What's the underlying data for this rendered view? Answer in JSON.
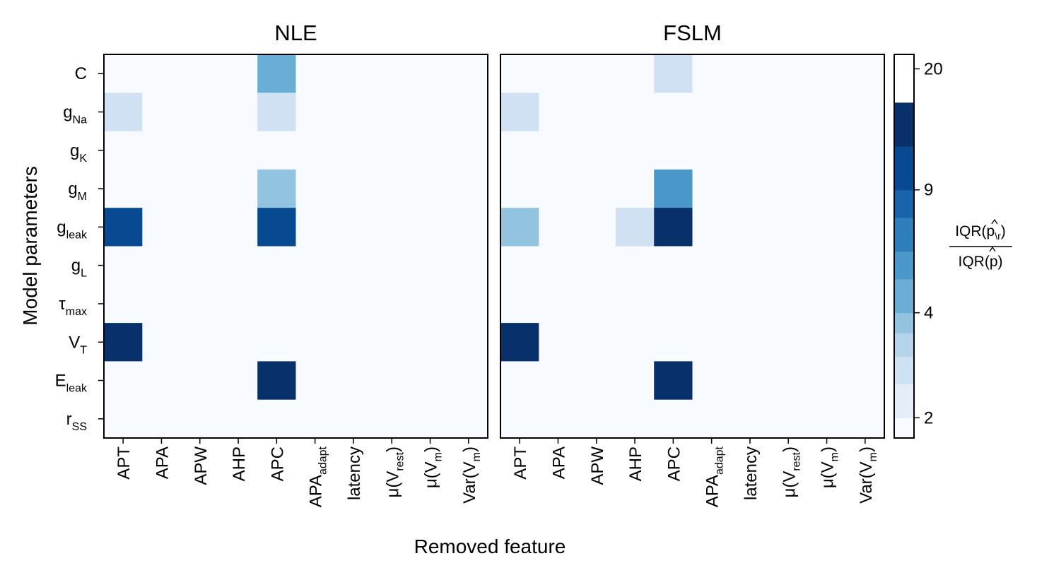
{
  "chart_data": [
    {
      "type": "heatmap",
      "title": "NLE",
      "xlabel": "Removed feature",
      "ylabel": "Model parameters",
      "x_categories": [
        {
          "base": "APT",
          "sub": ""
        },
        {
          "base": "APA",
          "sub": ""
        },
        {
          "base": "APW",
          "sub": ""
        },
        {
          "base": "AHP",
          "sub": ""
        },
        {
          "base": "APC",
          "sub": ""
        },
        {
          "base": "APA",
          "sub": "adapt"
        },
        {
          "base": "latency",
          "sub": ""
        },
        {
          "base": "μ(V",
          "sub": "rest",
          "post": ")"
        },
        {
          "base": "μ(V",
          "sub": "m",
          "post": ")"
        },
        {
          "base": "Var(V",
          "sub": "m",
          "post": ")"
        }
      ],
      "y_categories": [
        {
          "base": "C",
          "sub": ""
        },
        {
          "base": "g",
          "sub": "Na"
        },
        {
          "base": "g",
          "sub": "K"
        },
        {
          "base": "g",
          "sub": "M"
        },
        {
          "base": "g",
          "sub": "leak"
        },
        {
          "base": "g",
          "sub": "L"
        },
        {
          "base": "τ",
          "sub": "max"
        },
        {
          "base": "V",
          "sub": "T"
        },
        {
          "base": "E",
          "sub": "leak"
        },
        {
          "base": "r",
          "sub": "SS"
        }
      ],
      "values": [
        [
          1.5,
          1.5,
          1.5,
          1.5,
          4.5,
          1.5,
          1.5,
          1.5,
          1.5,
          1.5
        ],
        [
          2.5,
          1.5,
          1.5,
          1.5,
          2.5,
          1.5,
          1.5,
          1.5,
          1.5,
          1.5
        ],
        [
          1.5,
          1.5,
          1.5,
          1.5,
          1.5,
          1.5,
          1.5,
          1.5,
          1.5,
          1.5
        ],
        [
          1.5,
          1.5,
          1.5,
          1.5,
          3.5,
          1.5,
          1.5,
          1.5,
          1.5,
          1.5
        ],
        [
          9.5,
          1.5,
          1.5,
          1.5,
          9.5,
          1.5,
          1.5,
          1.5,
          1.5,
          1.5
        ],
        [
          1.5,
          1.5,
          1.5,
          1.5,
          1.5,
          1.5,
          1.5,
          1.5,
          1.5,
          1.5
        ],
        [
          1.5,
          1.5,
          1.5,
          1.5,
          1.5,
          1.5,
          1.5,
          1.5,
          1.5,
          1.5
        ],
        [
          25,
          1.5,
          1.5,
          1.5,
          1.5,
          1.5,
          1.5,
          1.5,
          1.5,
          1.5
        ],
        [
          1.5,
          1.5,
          1.5,
          1.5,
          25,
          1.5,
          1.5,
          1.5,
          1.5,
          1.5
        ],
        [
          1.5,
          1.5,
          1.5,
          1.5,
          1.5,
          1.5,
          1.5,
          1.5,
          1.5,
          1.5
        ]
      ]
    },
    {
      "type": "heatmap",
      "title": "FSLM",
      "xlabel": "Removed feature",
      "ylabel": "Model parameters",
      "x_categories": [
        {
          "base": "APT",
          "sub": ""
        },
        {
          "base": "APA",
          "sub": ""
        },
        {
          "base": "APW",
          "sub": ""
        },
        {
          "base": "AHP",
          "sub": ""
        },
        {
          "base": "APC",
          "sub": ""
        },
        {
          "base": "APA",
          "sub": "adapt"
        },
        {
          "base": "latency",
          "sub": ""
        },
        {
          "base": "μ(V",
          "sub": "rest",
          "post": ")"
        },
        {
          "base": "μ(V",
          "sub": "m",
          "post": ")"
        },
        {
          "base": "Var(V",
          "sub": "m",
          "post": ")"
        }
      ],
      "y_categories": [
        {
          "base": "C",
          "sub": ""
        },
        {
          "base": "g",
          "sub": "Na"
        },
        {
          "base": "g",
          "sub": "K"
        },
        {
          "base": "g",
          "sub": "M"
        },
        {
          "base": "g",
          "sub": "leak"
        },
        {
          "base": "g",
          "sub": "L"
        },
        {
          "base": "τ",
          "sub": "max"
        },
        {
          "base": "V",
          "sub": "T"
        },
        {
          "base": "E",
          "sub": "leak"
        },
        {
          "base": "r",
          "sub": "SS"
        }
      ],
      "values": [
        [
          1.5,
          1.5,
          1.5,
          1.5,
          2.5,
          1.5,
          1.5,
          1.5,
          1.5,
          1.5
        ],
        [
          2.5,
          1.5,
          1.5,
          1.5,
          1.5,
          1.5,
          1.5,
          1.5,
          1.5,
          1.5
        ],
        [
          1.5,
          1.5,
          1.5,
          1.5,
          1.5,
          1.5,
          1.5,
          1.5,
          1.5,
          1.5
        ],
        [
          1.5,
          1.5,
          1.5,
          1.5,
          5.5,
          1.5,
          1.5,
          1.5,
          1.5,
          1.5
        ],
        [
          3.5,
          1.5,
          1.5,
          2.5,
          18,
          1.5,
          1.5,
          1.5,
          1.5,
          1.5
        ],
        [
          1.5,
          1.5,
          1.5,
          1.5,
          1.5,
          1.5,
          1.5,
          1.5,
          1.5,
          1.5
        ],
        [
          1.5,
          1.5,
          1.5,
          1.5,
          1.5,
          1.5,
          1.5,
          1.5,
          1.5,
          1.5
        ],
        [
          25,
          1.5,
          1.5,
          1.5,
          1.5,
          1.5,
          1.5,
          1.5,
          1.5,
          1.5
        ],
        [
          1.5,
          1.5,
          1.5,
          1.5,
          25,
          1.5,
          1.5,
          1.5,
          1.5,
          1.5
        ],
        [
          1.5,
          1.5,
          1.5,
          1.5,
          1.5,
          1.5,
          1.5,
          1.5,
          1.5,
          1.5
        ]
      ]
    }
  ],
  "colorbar": {
    "boundaries": [
      1.75,
      2,
      2.5,
      3,
      3.5,
      4,
      5,
      6,
      7.5,
      9,
      12,
      16,
      20,
      22
    ],
    "colors": [
      "#f7fbff",
      "#e3eef9",
      "#cfe1f2",
      "#b5d4e9",
      "#93c4df",
      "#6aaed6",
      "#4a98c9",
      "#2e7ebc",
      "#1764ab",
      "#084a92",
      "#08306b"
    ],
    "ticks": [
      2,
      4,
      9,
      20
    ],
    "tick_labels": [
      "2",
      "4",
      "9",
      "20"
    ],
    "label_numerator": "IQR(p",
    "label_numerator_sub": "\\r",
    "label_numerator_close": ")",
    "label_denominator": "IQR(p)"
  }
}
